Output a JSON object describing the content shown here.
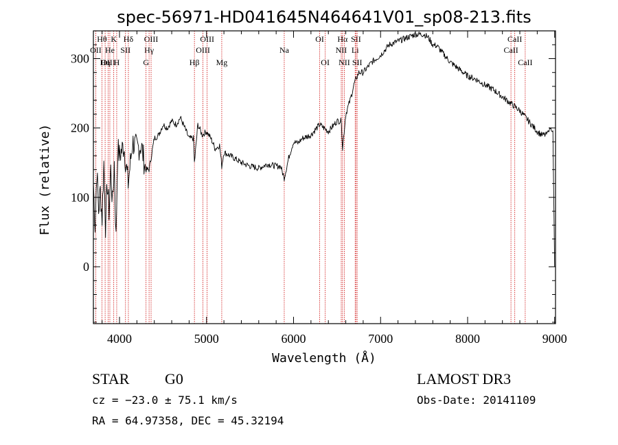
{
  "chart_data": {
    "type": "line",
    "title": "spec-56971-HD041645N464641V01_sp08-213.fits",
    "xlabel": "Wavelength (Å)",
    "ylabel": "Flux (relative)",
    "xlim": [
      3700,
      9010
    ],
    "ylim": [
      -82,
      340
    ],
    "x_ticks": [
      4000,
      5000,
      6000,
      7000,
      8000,
      9000
    ],
    "y_ticks": [
      0,
      100,
      200,
      300
    ],
    "series": [
      {
        "name": "flux",
        "x": [
          3700,
          3720,
          3740,
          3760,
          3780,
          3800,
          3820,
          3840,
          3860,
          3880,
          3900,
          3920,
          3940,
          3960,
          3980,
          4000,
          4050,
          4100,
          4150,
          4200,
          4250,
          4300,
          4340,
          4400,
          4450,
          4500,
          4550,
          4600,
          4650,
          4700,
          4750,
          4800,
          4850,
          4861,
          4900,
          4950,
          5000,
          5050,
          5100,
          5150,
          5175,
          5200,
          5300,
          5400,
          5500,
          5600,
          5700,
          5800,
          5850,
          5893,
          5950,
          6000,
          6050,
          6100,
          6200,
          6300,
          6400,
          6500,
          6550,
          6563,
          6600,
          6650,
          6700,
          6750,
          6800,
          6900,
          7000,
          7100,
          7200,
          7300,
          7400,
          7500,
          7550,
          7600,
          7650,
          7700,
          7800,
          7900,
          8000,
          8100,
          8200,
          8300,
          8400,
          8500,
          8600,
          8700,
          8800,
          8850,
          8900,
          8950,
          8980,
          9000
        ],
        "y": [
          120,
          60,
          140,
          80,
          110,
          70,
          150,
          60,
          120,
          80,
          140,
          90,
          150,
          40,
          170,
          160,
          175,
          120,
          180,
          170,
          175,
          140,
          140,
          185,
          190,
          205,
          200,
          210,
          205,
          215,
          200,
          185,
          185,
          150,
          205,
          190,
          195,
          185,
          170,
          175,
          145,
          165,
          158,
          150,
          145,
          142,
          148,
          145,
          145,
          128,
          160,
          180,
          178,
          185,
          190,
          205,
          195,
          210,
          210,
          170,
          220,
          240,
          265,
          280,
          280,
          295,
          305,
          320,
          325,
          330,
          335,
          335,
          330,
          320,
          318,
          310,
          295,
          285,
          275,
          270,
          262,
          255,
          245,
          235,
          225,
          210,
          195,
          190,
          190,
          200,
          195,
          0
        ]
      }
    ],
    "spectral_lines": [
      {
        "label": "Hθ",
        "x": 3798,
        "row": 1
      },
      {
        "label": "OII",
        "x": 3727,
        "row": 2
      },
      {
        "label": "OIII",
        "x": 3869,
        "row": 3
      },
      {
        "label": "K",
        "x": 3934,
        "row": 1
      },
      {
        "label": "He",
        "x": 3889,
        "row": 2
      },
      {
        "label": "Hη",
        "x": 3835,
        "row": 3
      },
      {
        "label": "Hδ",
        "x": 4102,
        "row": 1
      },
      {
        "label": "SII",
        "x": 4069,
        "row": 2
      },
      {
        "label": "H",
        "x": 3968,
        "row": 3
      },
      {
        "label": "OIII",
        "x": 4363,
        "row": 1
      },
      {
        "label": "Hγ",
        "x": 4340,
        "row": 2
      },
      {
        "label": "G",
        "x": 4305,
        "row": 3
      },
      {
        "label": "OIII",
        "x": 5007,
        "row": 1
      },
      {
        "label": "OIII",
        "x": 4959,
        "row": 2
      },
      {
        "label": "Hβ",
        "x": 4861,
        "row": 3
      },
      {
        "label": "Mg",
        "x": 5175,
        "row": 3
      },
      {
        "label": "Na",
        "x": 5893,
        "row": 2
      },
      {
        "label": "OI",
        "x": 6300,
        "row": 1
      },
      {
        "label": "OI",
        "x": 6364,
        "row": 3
      },
      {
        "label": "Hα",
        "x": 6563,
        "row": 1
      },
      {
        "label": "NII",
        "x": 6548,
        "row": 2
      },
      {
        "label": "NII",
        "x": 6583,
        "row": 3
      },
      {
        "label": "SII",
        "x": 6717,
        "row": 1
      },
      {
        "label": "Li",
        "x": 6708,
        "row": 2
      },
      {
        "label": "SII",
        "x": 6731,
        "row": 3
      },
      {
        "label": "CaII",
        "x": 8542,
        "row": 1
      },
      {
        "label": "CaII",
        "x": 8498,
        "row": 2
      },
      {
        "label": "CaII",
        "x": 8662,
        "row": 3
      }
    ]
  },
  "footer": {
    "object_type": "STAR",
    "subclass": "G0",
    "survey": "LAMOST DR3",
    "cz": "cz = −23.0 ± 75.1 km/s",
    "obs_date": "Obs-Date: 20141109",
    "coords": "RA =  64.97358, DEC =  45.32194"
  },
  "colors": {
    "axes": "#000000",
    "spectrum": "#000000",
    "line_marker": "#cc0000"
  }
}
